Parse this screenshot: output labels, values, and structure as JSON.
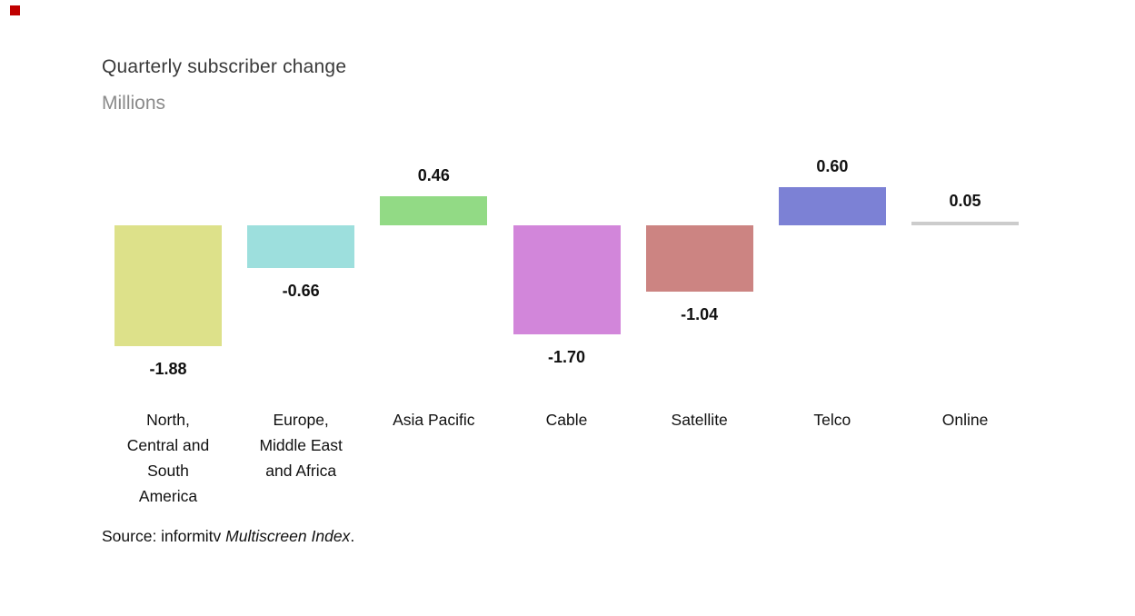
{
  "page": {
    "recording_indicator_color": "#c00000",
    "background": "#ffffff"
  },
  "header": {
    "title": "Quarterly subscriber change",
    "subtitle": "Millions"
  },
  "chart_data": {
    "type": "bar",
    "title": "Quarterly subscriber change",
    "subtitle": "Millions",
    "ylabel": "Millions",
    "categories": [
      "North, Central and South America",
      "Europe, Middle East and Africa",
      "Asia Pacific",
      "Cable",
      "Satellite",
      "Telco",
      "Online"
    ],
    "category_display": [
      "North,\nCentral and\nSouth\nAmerica",
      "Europe,\nMiddle East\nand Africa",
      "Asia Pacific",
      "Cable",
      "Satellite",
      "Telco",
      "Online"
    ],
    "values": [
      -1.88,
      -0.66,
      0.46,
      -1.7,
      -1.04,
      0.6,
      0.05
    ],
    "data_labels": [
      "-1.88",
      "-0.66",
      "0.46",
      "-1.70",
      "-1.04",
      "0.60",
      "0.05"
    ],
    "bar_colors": [
      "#dde18a",
      "#9ddfdd",
      "#92da85",
      "#d286da",
      "#cc8482",
      "#7c81d5",
      "#cccccc"
    ],
    "baseline": 0,
    "ylim": [
      -2.0,
      0.8
    ],
    "grid": false,
    "legend_position": "none",
    "axis_lines": false
  },
  "source": {
    "prefix": "Source: informitv ",
    "italic": "Multiscreen Index",
    "suffix": "."
  }
}
